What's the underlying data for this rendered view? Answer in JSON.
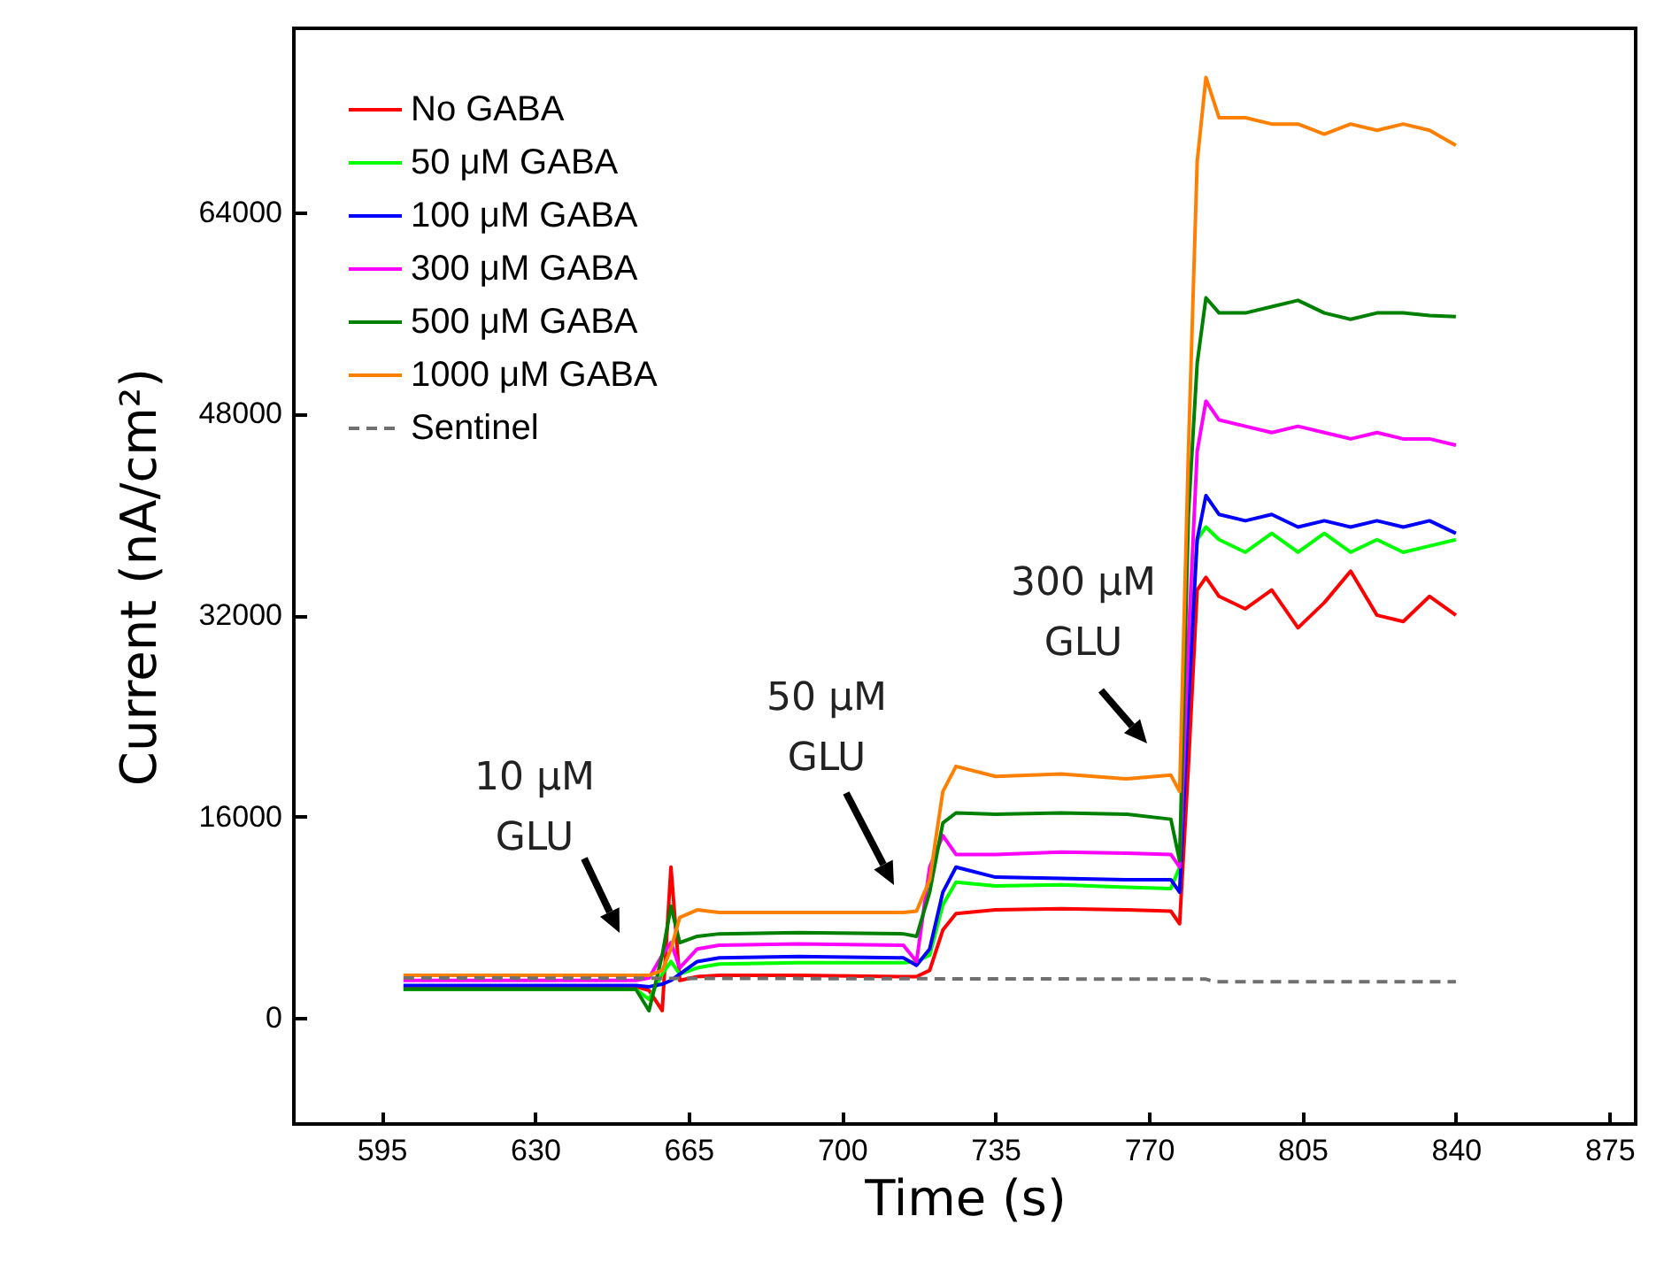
{
  "chart_data": {
    "type": "line",
    "xlabel": "Time (s)",
    "ylabel": "Current (nA/cm²)",
    "xlim": [
      575,
      881
    ],
    "xticks": [
      595,
      630,
      665,
      700,
      735,
      770,
      805,
      840,
      875
    ],
    "ylim": [
      -8400,
      78600
    ],
    "yticks": [
      0,
      16000,
      32000,
      48000,
      64000
    ],
    "grid": false,
    "legend": "top left",
    "x": [
      600,
      653,
      656,
      659,
      661,
      663,
      667,
      672,
      690,
      714,
      717,
      720,
      723,
      726,
      735,
      750,
      765,
      775,
      777,
      779,
      781,
      783,
      786,
      792,
      798,
      804,
      810,
      816,
      822,
      828,
      834,
      840
    ],
    "series": [
      {
        "name": "No GABA",
        "color": "#ff0000",
        "values": [
          2500,
          2500,
          2200,
          600,
          12000,
          3000,
          3300,
          3400,
          3400,
          3300,
          3300,
          3800,
          7000,
          8300,
          8600,
          8700,
          8600,
          8500,
          7500,
          20000,
          34000,
          35000,
          33500,
          32500,
          34000,
          31000,
          33000,
          35500,
          32000,
          31500,
          33500,
          32000
        ]
      },
      {
        "name": "50 μM GABA",
        "color": "#00ff00",
        "values": [
          2300,
          2300,
          1500,
          3500,
          4500,
          3500,
          4000,
          4300,
          4400,
          4400,
          4500,
          5000,
          9000,
          10800,
          10500,
          10600,
          10400,
          10300,
          12000,
          30000,
          38000,
          39000,
          38000,
          37000,
          38500,
          37000,
          38500,
          37000,
          38000,
          37000,
          37500,
          38000
        ]
      },
      {
        "name": "100 μM GABA",
        "color": "#0000ff",
        "values": [
          2600,
          2600,
          2500,
          2700,
          3000,
          3500,
          4500,
          4800,
          4900,
          4800,
          4200,
          5500,
          10000,
          12000,
          11200,
          11100,
          11000,
          11000,
          10000,
          25000,
          38000,
          41500,
          40000,
          39500,
          40000,
          39000,
          39500,
          39000,
          39500,
          39000,
          39500,
          38500
        ]
      },
      {
        "name": "300 μM GABA",
        "color": "#ff00ff",
        "values": [
          3000,
          3000,
          3200,
          5000,
          6000,
          4000,
          5500,
          5800,
          5900,
          5800,
          4500,
          12000,
          14500,
          13000,
          13000,
          13200,
          13100,
          13000,
          12000,
          30000,
          45000,
          49000,
          47500,
          47000,
          46500,
          47000,
          46500,
          46000,
          46500,
          46000,
          46000,
          45500
        ]
      },
      {
        "name": "500 μM GABA",
        "color": "#008000",
        "values": [
          2300,
          2300,
          600,
          5000,
          8900,
          6000,
          6500,
          6700,
          6800,
          6700,
          6500,
          10000,
          15500,
          16300,
          16200,
          16300,
          16200,
          15800,
          12500,
          40000,
          52000,
          57200,
          56000,
          56000,
          56500,
          57000,
          56000,
          55500,
          56000,
          56000,
          55800,
          55700
        ]
      },
      {
        "name": "1000 μM GABA",
        "color": "#ff8000",
        "values": [
          3400,
          3400,
          3400,
          3800,
          5500,
          8000,
          8600,
          8400,
          8400,
          8400,
          8500,
          11000,
          18000,
          20000,
          19200,
          19400,
          19000,
          19300,
          18000,
          45000,
          68000,
          74700,
          71500,
          71500,
          71000,
          71000,
          70200,
          71000,
          70500,
          71000,
          70500,
          69300
        ]
      },
      {
        "name": "Sentinel",
        "color": "#707070",
        "line_style": "dashed",
        "x": [
          600,
          783,
          785,
          840
        ],
        "values": [
          3200,
          3100,
          2900,
          2900
        ]
      }
    ],
    "annotations": [
      "10 μM\nGLU",
      "50 μM\nGLU",
      "300 μM\nGLU"
    ]
  }
}
